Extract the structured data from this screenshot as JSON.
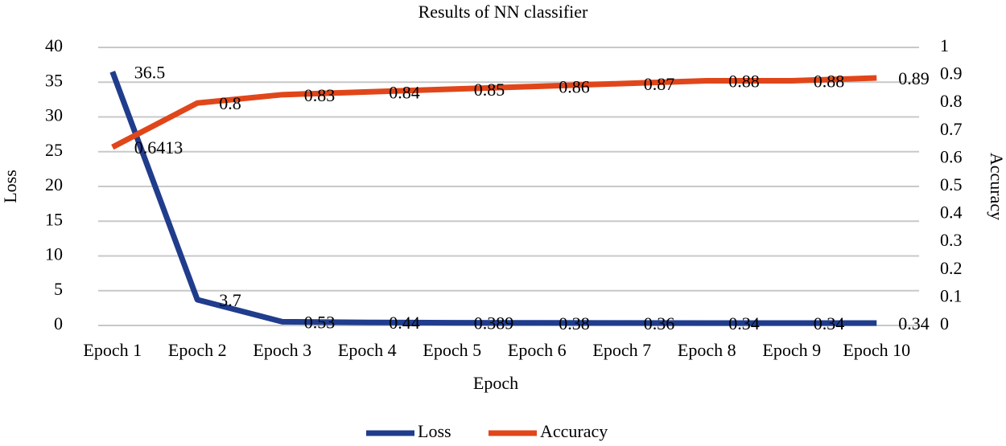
{
  "chart_data": {
    "type": "line",
    "title": "Results of NN classifier",
    "x_label": "Epoch",
    "y_label": "Loss",
    "y2_label": "Accuracy",
    "categories": [
      "Epoch 1",
      "Epoch 2",
      "Epoch 3",
      "Epoch 4",
      "Epoch 5",
      "Epoch 6",
      "Epoch 7",
      "Epoch 8",
      "Epoch 9",
      "Epoch 10"
    ],
    "series": [
      {
        "name": "Loss",
        "color": "#203c8c",
        "values": [
          36.5,
          3.7,
          0.53,
          0.44,
          0.389,
          0.38,
          0.36,
          0.34,
          0.34,
          0.34
        ]
      },
      {
        "name": "Accuracy",
        "color": "#e0461a",
        "axis": "y2",
        "values": [
          0.6413,
          0.8,
          0.83,
          0.84,
          0.85,
          0.86,
          0.87,
          0.88,
          0.88,
          0.89
        ]
      }
    ],
    "ylim": [
      0,
      40
    ],
    "yticks": [
      0,
      5,
      10,
      15,
      20,
      25,
      30,
      35,
      40
    ],
    "y2lim": [
      0,
      1
    ],
    "y2ticks": [
      0,
      0.1,
      0.2,
      0.3,
      0.4,
      0.5,
      0.6,
      0.7,
      0.8,
      0.9,
      1
    ],
    "grid": true,
    "legend": "bottom",
    "data_labels": true
  }
}
